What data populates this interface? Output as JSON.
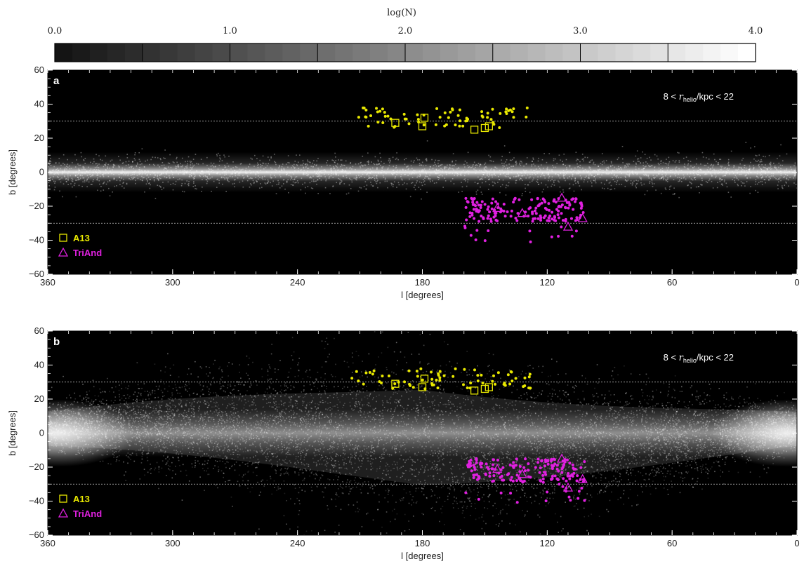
{
  "colorbar": {
    "label": "log(N)",
    "ticks": [
      "0.0",
      "1.0",
      "2.0",
      "3.0",
      "4.0"
    ],
    "range": [
      0,
      4
    ]
  },
  "colors": {
    "a13": "#e8e800",
    "triand": "#e020e0",
    "background": "#000000",
    "reference_line": "#cccccc"
  },
  "chart_data": [
    {
      "type": "scatter",
      "panel": "a",
      "xlabel": "l [degrees]",
      "ylabel": "b [degrees]",
      "xlim": [
        360,
        0
      ],
      "ylim": [
        -60,
        60
      ],
      "xticks": [
        "360",
        "300",
        "240",
        "180",
        "120",
        "60",
        "0"
      ],
      "yticks": [
        "60",
        "40",
        "20",
        "0",
        "−20",
        "−40",
        "−60"
      ],
      "annotation": "8 < r_helio/kpc < 22",
      "reference_lines_b": [
        30,
        -30
      ],
      "background_model": "thin disk concentrated near b = 0",
      "legend": {
        "placement": "bottom-left",
        "entries": [
          {
            "name": "A13",
            "marker": "square",
            "color": "#e8e800"
          },
          {
            "name": "TriAnd",
            "marker": "triangle",
            "color": "#e020e0"
          }
        ]
      },
      "series": [
        {
          "name": "A13",
          "markers": [
            [
              193,
              29
            ],
            [
              180,
              27
            ],
            [
              179,
              32
            ],
            [
              155,
              25
            ],
            [
              150,
              26
            ],
            [
              148,
              27
            ]
          ]
        },
        {
          "name": "TriAnd",
          "markers": [
            [
              144,
              -21
            ],
            [
              110,
              -32
            ],
            [
              103,
              -27
            ],
            [
              113,
              -15
            ],
            [
              132,
              -24
            ]
          ]
        }
      ]
    },
    {
      "type": "scatter",
      "panel": "b",
      "xlabel": "l [degrees]",
      "ylabel": "b [degrees]",
      "xlim": [
        360,
        0
      ],
      "ylim": [
        -60,
        60
      ],
      "xticks": [
        "360",
        "300",
        "240",
        "180",
        "120",
        "60",
        "0"
      ],
      "yticks": [
        "60",
        "40",
        "20",
        "0",
        "−20",
        "−40",
        "−60"
      ],
      "annotation": "8 < r_helio/kpc < 22",
      "reference_lines_b": [
        30,
        -30
      ],
      "background_model": "flared disk with warp, broad toward anticentre",
      "legend": {
        "placement": "bottom-left",
        "entries": [
          {
            "name": "A13",
            "marker": "square",
            "color": "#e8e800"
          },
          {
            "name": "TriAnd",
            "marker": "triangle",
            "color": "#e020e0"
          }
        ]
      },
      "series": [
        {
          "name": "A13",
          "markers": [
            [
              193,
              29
            ],
            [
              180,
              27
            ],
            [
              179,
              32
            ],
            [
              155,
              25
            ],
            [
              150,
              26
            ],
            [
              148,
              27
            ]
          ]
        },
        {
          "name": "TriAnd",
          "markers": [
            [
              144,
              -21
            ],
            [
              110,
              -32
            ],
            [
              103,
              -27
            ],
            [
              113,
              -15
            ],
            [
              132,
              -24
            ]
          ]
        }
      ]
    }
  ]
}
